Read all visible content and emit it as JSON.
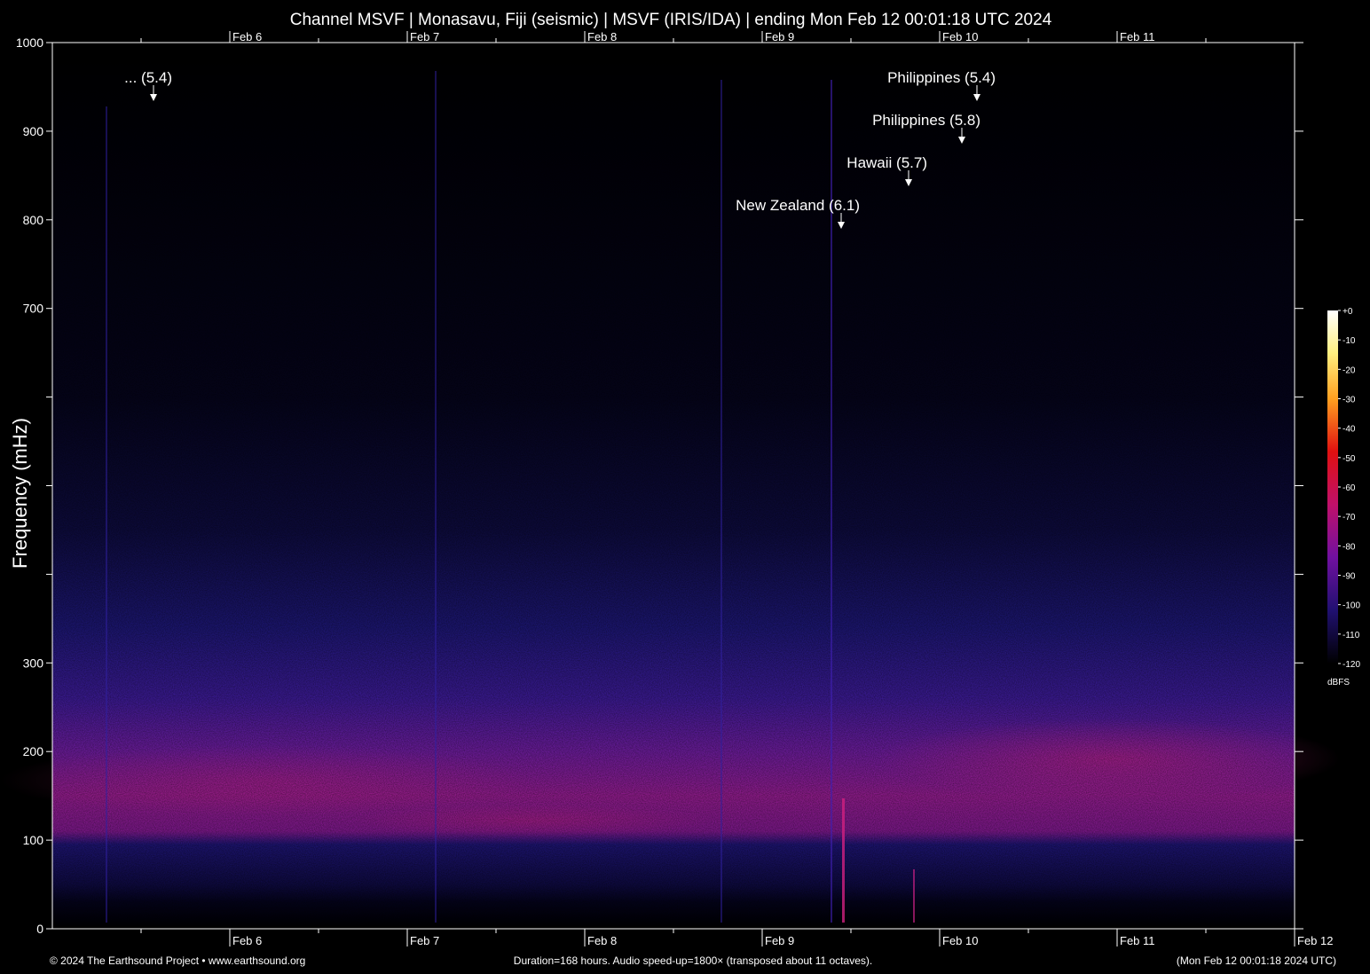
{
  "chart_data": {
    "type": "spectrogram",
    "title": "Channel MSVF | Monasavu, Fiji (seismic) | MSVF (IRIS/IDA) | ending Mon Feb 12 00:01:18 UTC 2024",
    "y_label": "Frequency (mHz)",
    "xlim": [
      5,
      12
    ],
    "xticks": [
      {
        "value": 6,
        "label": "Feb 6"
      },
      {
        "value": 7,
        "label": "Feb 7"
      },
      {
        "value": 8,
        "label": "Feb 8"
      },
      {
        "value": 9,
        "label": "Feb 9"
      },
      {
        "value": 10,
        "label": "Feb 10"
      },
      {
        "value": 11,
        "label": "Feb 11"
      },
      {
        "value": 12,
        "label": "Feb 12"
      }
    ],
    "ylim": [
      0,
      1000
    ],
    "yticks": [
      0,
      100,
      200,
      300,
      700,
      800,
      900,
      1000
    ],
    "yticks_unlabeled": [
      400,
      500,
      600
    ],
    "annotations": [
      {
        "text": "... (5.4)",
        "x": 5.57
      },
      {
        "text": "Philippines (5.4)",
        "x": 10.21
      },
      {
        "text": "Philippines (5.8)",
        "x": 10.125
      },
      {
        "text": "Hawaii (5.7)",
        "x": 9.825
      },
      {
        "text": "New Zealand (6.1)",
        "x": 9.445
      }
    ],
    "colorbar": {
      "label": "dBFS",
      "lim": [
        -120,
        0
      ],
      "ticks": [
        {
          "value": 0,
          "label": "+0"
        },
        -10,
        -20,
        -30,
        -40,
        -50,
        -60,
        -70,
        -80,
        -90,
        -100,
        -110,
        -120
      ]
    },
    "footer_left": "© 2024 The Earthsound Project • www.earthsound.org",
    "footer_center": "Duration=168 hours. Audio speed-up=1800× (transposed about 11 octaves).",
    "footer_right": "(Mon Feb 12 00:01:18 2024 UTC)"
  }
}
